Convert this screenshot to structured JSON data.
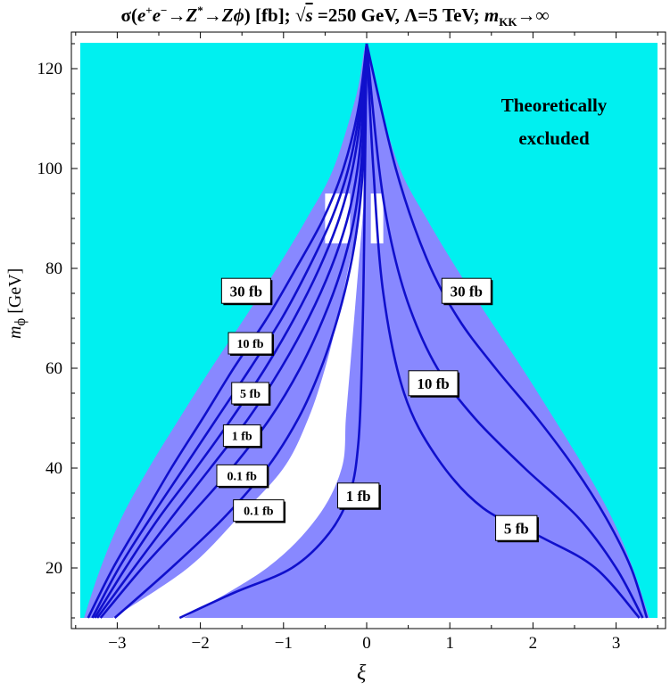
{
  "title": {
    "sigma": "σ",
    "process_open": "(",
    "e1": "e",
    "e1_sup": "+",
    "e2": "e",
    "e2_sup": "−",
    "arrow1": "→",
    "z1": "Z",
    "z1_sup": "*",
    "arrow2": "→",
    "z2": "Z",
    "phi": "ϕ",
    "process_close": ") [fb];",
    "sqrt": "√",
    "s": "s",
    "energy": " =250 GeV, Λ=5 TeV;",
    "m": "m",
    "m_sub": "KK",
    "limit": "→∞"
  },
  "axes": {
    "y_label_m": "m",
    "y_label_sub": "ϕ",
    "y_label_unit": " [GeV]",
    "x_label": "ξ"
  },
  "annotation": {
    "line1": "Theoretically",
    "line2": "excluded"
  },
  "colors": {
    "excluded": "#00f0f0",
    "allowed": "#8888ff",
    "white_region": "#ffffff",
    "contour": "#1010cc"
  },
  "chart_data": {
    "type": "contour",
    "xlabel": "ξ",
    "ylabel": "m_ϕ [GeV]",
    "xlim": [
      -3.5,
      3.5
    ],
    "ylim": [
      10,
      125
    ],
    "x_ticks": [
      -3,
      -2,
      -1,
      0,
      1,
      2,
      3
    ],
    "y_ticks": [
      20,
      40,
      60,
      80,
      100,
      120
    ],
    "x_tick_labels": [
      "−3",
      "−2",
      "−1",
      "0",
      "1",
      "2",
      "3"
    ],
    "y_tick_labels": [
      "20",
      "40",
      "60",
      "80",
      "100",
      "120"
    ],
    "allowed_boundary": [
      [
        -3.4,
        10
      ],
      [
        -3.2,
        20
      ],
      [
        -2.95,
        30
      ],
      [
        -2.62,
        40
      ],
      [
        -2.25,
        50
      ],
      [
        -1.87,
        60
      ],
      [
        -1.47,
        70
      ],
      [
        -1.08,
        80
      ],
      [
        -0.72,
        90
      ],
      [
        -0.4,
        100
      ],
      [
        -0.12,
        115
      ],
      [
        0,
        125
      ],
      [
        0.12,
        115
      ],
      [
        0.4,
        100
      ],
      [
        0.72,
        90
      ],
      [
        1.08,
        80
      ],
      [
        1.47,
        70
      ],
      [
        1.87,
        60
      ],
      [
        2.25,
        50
      ],
      [
        2.62,
        40
      ],
      [
        2.95,
        30
      ],
      [
        3.2,
        20
      ],
      [
        3.4,
        10
      ]
    ],
    "white_region": [
      [
        -3.05,
        10
      ],
      [
        -2.15,
        20
      ],
      [
        -1.55,
        30
      ],
      [
        -1.0,
        40
      ],
      [
        -0.7,
        50
      ],
      [
        -0.5,
        60
      ],
      [
        -0.35,
        70
      ],
      [
        -0.22,
        80
      ],
      [
        -0.1,
        90
      ],
      [
        -0.04,
        100
      ],
      [
        0,
        125
      ],
      [
        -0.01,
        100
      ],
      [
        -0.05,
        90
      ],
      [
        -0.1,
        80
      ],
      [
        -0.15,
        70
      ],
      [
        -0.2,
        60
      ],
      [
        -0.25,
        50
      ],
      [
        -0.3,
        40
      ],
      [
        -0.6,
        30
      ],
      [
        -1.2,
        20
      ],
      [
        -2.2,
        10
      ]
    ],
    "white_patches": [
      {
        "x": [
          -0.5,
          -0.2
        ],
        "y": [
          85,
          95
        ]
      },
      {
        "x": [
          0.05,
          0.2
        ],
        "y": [
          85,
          95
        ]
      }
    ],
    "contours": [
      {
        "label": "30 fb",
        "side": "left",
        "points": [
          [
            -3.35,
            10
          ],
          [
            -3.05,
            20
          ],
          [
            -2.7,
            30
          ],
          [
            -2.35,
            40
          ],
          [
            -1.97,
            50
          ],
          [
            -1.6,
            60
          ],
          [
            -1.2,
            70
          ],
          [
            -0.85,
            80
          ],
          [
            -0.52,
            90
          ],
          [
            -0.28,
            100
          ],
          [
            -0.1,
            112
          ],
          [
            0,
            125
          ]
        ]
      },
      {
        "label": "10 fb",
        "side": "left",
        "points": [
          [
            -3.3,
            10
          ],
          [
            -2.98,
            20
          ],
          [
            -2.6,
            30
          ],
          [
            -2.2,
            40
          ],
          [
            -1.8,
            50
          ],
          [
            -1.4,
            60
          ],
          [
            -1.02,
            70
          ],
          [
            -0.7,
            80
          ],
          [
            -0.42,
            90
          ],
          [
            -0.22,
            100
          ],
          [
            -0.08,
            112
          ],
          [
            0,
            125
          ]
        ]
      },
      {
        "label": "5 fb",
        "side": "left",
        "points": [
          [
            -3.27,
            10
          ],
          [
            -2.9,
            20
          ],
          [
            -2.5,
            30
          ],
          [
            -2.05,
            40
          ],
          [
            -1.62,
            50
          ],
          [
            -1.22,
            60
          ],
          [
            -0.87,
            70
          ],
          [
            -0.57,
            80
          ],
          [
            -0.33,
            90
          ],
          [
            -0.17,
            100
          ],
          [
            -0.06,
            112
          ],
          [
            0,
            125
          ]
        ]
      },
      {
        "label": "1 fb",
        "side": "left",
        "points": [
          [
            -3.24,
            10
          ],
          [
            -2.8,
            20
          ],
          [
            -2.35,
            30
          ],
          [
            -1.88,
            40
          ],
          [
            -1.42,
            50
          ],
          [
            -1.03,
            60
          ],
          [
            -0.7,
            70
          ],
          [
            -0.43,
            80
          ],
          [
            -0.23,
            90
          ],
          [
            -0.11,
            100
          ],
          [
            -0.04,
            112
          ],
          [
            0,
            125
          ]
        ]
      },
      {
        "label": "0.1 fb",
        "side": "left",
        "points": [
          [
            -3.2,
            10
          ],
          [
            -2.7,
            20
          ],
          [
            -2.15,
            30
          ],
          [
            -1.62,
            40
          ],
          [
            -1.16,
            50
          ],
          [
            -0.8,
            60
          ],
          [
            -0.52,
            70
          ],
          [
            -0.3,
            80
          ],
          [
            -0.15,
            90
          ],
          [
            -0.07,
            100
          ],
          [
            -0.025,
            112
          ],
          [
            0,
            125
          ]
        ]
      },
      {
        "label": "0.1 fb",
        "side": "left",
        "points": [
          [
            -3.03,
            10
          ],
          [
            -2.35,
            20
          ],
          [
            -1.72,
            30
          ],
          [
            -1.2,
            40
          ],
          [
            -0.82,
            50
          ],
          [
            -0.55,
            60
          ],
          [
            -0.35,
            70
          ],
          [
            -0.2,
            80
          ],
          [
            -0.1,
            90
          ],
          [
            -0.045,
            100
          ],
          [
            -0.015,
            112
          ],
          [
            0,
            125
          ]
        ]
      },
      {
        "label": "1 fb",
        "side": "right",
        "points": [
          [
            -2.25,
            10
          ],
          [
            -1.6,
            15
          ],
          [
            -0.9,
            20
          ],
          [
            -0.45,
            27
          ],
          [
            -0.2,
            35
          ],
          [
            -0.1,
            45
          ],
          [
            -0.06,
            60
          ],
          [
            -0.035,
            80
          ],
          [
            -0.02,
            100
          ],
          [
            0,
            125
          ]
        ]
      },
      {
        "label": "5 fb",
        "side": "right",
        "points": [
          [
            3.28,
            10
          ],
          [
            2.75,
            20
          ],
          [
            2.12,
            26
          ],
          [
            1.4,
            32
          ],
          [
            0.85,
            42
          ],
          [
            0.45,
            55
          ],
          [
            0.2,
            75
          ],
          [
            0.08,
            100
          ],
          [
            0,
            125
          ]
        ]
      },
      {
        "label": "10 fb",
        "side": "right",
        "points": [
          [
            3.32,
            10
          ],
          [
            3.0,
            20
          ],
          [
            2.55,
            30
          ],
          [
            1.9,
            40
          ],
          [
            1.3,
            50
          ],
          [
            0.85,
            60
          ],
          [
            0.52,
            72
          ],
          [
            0.3,
            85
          ],
          [
            0.15,
            100
          ],
          [
            0,
            125
          ]
        ]
      },
      {
        "label": "30 fb",
        "side": "right",
        "points": [
          [
            3.37,
            10
          ],
          [
            3.18,
            20
          ],
          [
            2.88,
            30
          ],
          [
            2.5,
            40
          ],
          [
            2.05,
            50
          ],
          [
            1.55,
            60
          ],
          [
            1.1,
            70
          ],
          [
            0.72,
            82
          ],
          [
            0.35,
            100
          ],
          [
            0,
            125
          ]
        ]
      }
    ],
    "contour_labels": [
      {
        "text": "30 fb",
        "x": -1.45,
        "y": 75.5,
        "size": "large"
      },
      {
        "text": "10 fb",
        "x": -1.4,
        "y": 65,
        "size": "small"
      },
      {
        "text": "5 fb",
        "x": -1.4,
        "y": 55,
        "size": "small"
      },
      {
        "text": "1 fb",
        "x": -1.5,
        "y": 46.5,
        "size": "small"
      },
      {
        "text": "0.1 fb",
        "x": -1.5,
        "y": 38.5,
        "size": "small"
      },
      {
        "text": "0.1 fb",
        "x": -1.3,
        "y": 31.5,
        "size": "small"
      },
      {
        "text": "1 fb",
        "x": -0.1,
        "y": 34.5,
        "size": "large"
      },
      {
        "text": "30 fb",
        "x": 1.2,
        "y": 75.5,
        "size": "large"
      },
      {
        "text": "10 fb",
        "x": 0.8,
        "y": 57,
        "size": "large"
      },
      {
        "text": "5 fb",
        "x": 1.8,
        "y": 28,
        "size": "large"
      }
    ],
    "annotation": [
      "Theoretically",
      "excluded"
    ],
    "grid": false
  }
}
